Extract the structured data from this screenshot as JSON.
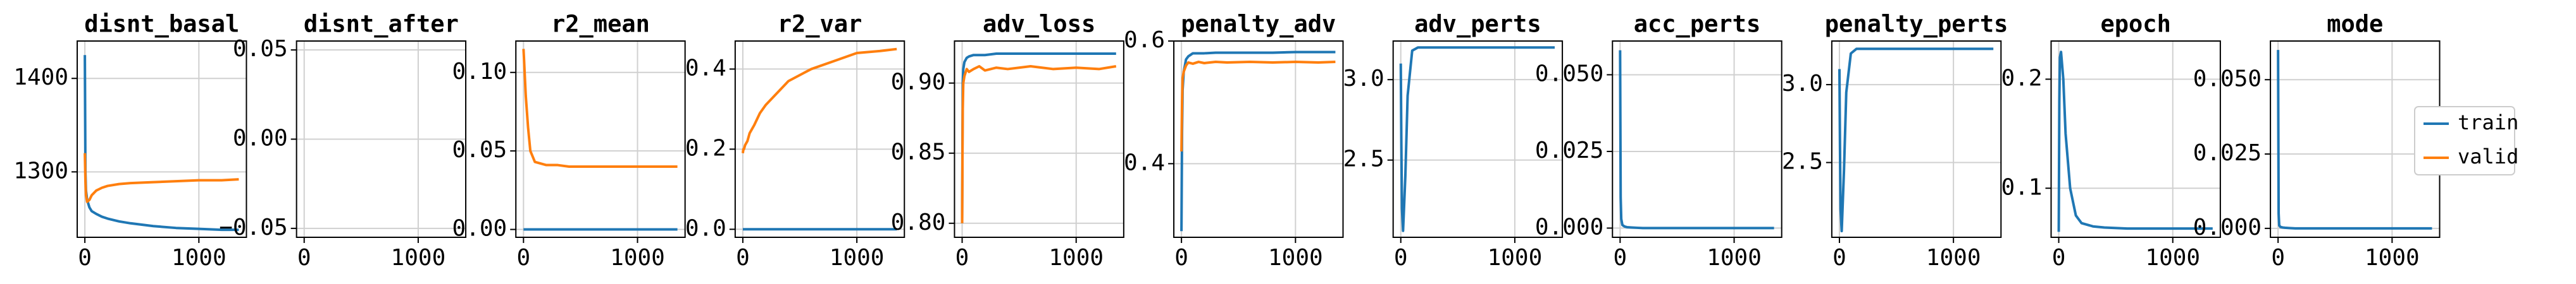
{
  "chart_data": [
    {
      "type": "line",
      "title": "disnt_basal",
      "grid": true,
      "x": [
        0,
        5,
        10,
        20,
        40,
        60,
        100,
        150,
        200,
        300,
        400,
        600,
        800,
        1000,
        1200,
        1350
      ],
      "xlim": [
        -67,
        1417
      ],
      "xticks": [
        0,
        1000
      ],
      "ylim": [
        1230,
        1440
      ],
      "yticks": [
        1300,
        1400
      ],
      "series": [
        {
          "name": "train",
          "color": "#1f77b4",
          "values": [
            1425,
            1300,
            1280,
            1270,
            1262,
            1258,
            1255,
            1252,
            1250,
            1247,
            1245,
            1242,
            1240,
            1239,
            1238,
            1238
          ]
        },
        {
          "name": "valid",
          "color": "#ff7f0e",
          "values": [
            1320,
            1290,
            1275,
            1268,
            1270,
            1275,
            1280,
            1283,
            1285,
            1287,
            1288,
            1289,
            1290,
            1291,
            1291,
            1292
          ]
        }
      ]
    },
    {
      "type": "line",
      "title": "disnt_after",
      "grid": true,
      "x": [],
      "xlim": [
        -67,
        1417
      ],
      "xticks": [
        0,
        1000
      ],
      "ylim": [
        -0.055,
        0.055
      ],
      "yticks": [
        {
          "value": -0.05,
          "label": "−0.05"
        },
        {
          "value": 0,
          "label": "0.00"
        },
        0.05
      ],
      "series": []
    },
    {
      "type": "line",
      "title": "r2_mean",
      "grid": true,
      "x": [
        0,
        5,
        10,
        20,
        40,
        60,
        100,
        150,
        200,
        300,
        400,
        600,
        800,
        1000,
        1200,
        1350
      ],
      "xlim": [
        -67,
        1417
      ],
      "xticks": [
        0,
        1000
      ],
      "ylim": [
        -0.005,
        0.12
      ],
      "yticks": [
        {
          "value": 0,
          "label": "0.00"
        },
        0.05,
        {
          "value": 0.1,
          "label": "0.10"
        }
      ],
      "series": [
        {
          "name": "train",
          "color": "#1f77b4",
          "values": [
            0,
            0,
            0,
            0,
            0,
            0,
            0,
            0,
            0,
            0,
            0,
            0,
            0,
            0,
            0,
            0
          ]
        },
        {
          "name": "valid",
          "color": "#ff7f0e",
          "values": [
            0.115,
            0.108,
            0.1,
            0.085,
            0.065,
            0.05,
            0.043,
            0.042,
            0.041,
            0.041,
            0.04,
            0.04,
            0.04,
            0.04,
            0.04,
            0.04
          ]
        }
      ]
    },
    {
      "type": "line",
      "title": "r2_var",
      "grid": true,
      "x": [
        0,
        5,
        10,
        20,
        40,
        60,
        100,
        150,
        200,
        300,
        400,
        600,
        800,
        1000,
        1200,
        1350
      ],
      "xlim": [
        -67,
        1417
      ],
      "xticks": [
        0,
        1000
      ],
      "ylim": [
        -0.02,
        0.47
      ],
      "yticks": [
        {
          "value": 0,
          "label": "0.0"
        },
        0.2,
        0.4
      ],
      "series": [
        {
          "name": "train",
          "color": "#1f77b4",
          "values": [
            0,
            0,
            0,
            0,
            0,
            0,
            0,
            0,
            0,
            0,
            0,
            0,
            0,
            0,
            0,
            0
          ]
        },
        {
          "name": "valid",
          "color": "#ff7f0e",
          "values": [
            0.19,
            0.2,
            0.2,
            0.21,
            0.22,
            0.24,
            0.26,
            0.29,
            0.31,
            0.34,
            0.37,
            0.4,
            0.42,
            0.44,
            0.445,
            0.45
          ]
        }
      ]
    },
    {
      "type": "line",
      "title": "adv_loss",
      "grid": true,
      "x": [
        0,
        5,
        10,
        20,
        40,
        60,
        100,
        150,
        200,
        300,
        400,
        600,
        800,
        1000,
        1200,
        1350
      ],
      "xlim": [
        -67,
        1417
      ],
      "xticks": [
        0,
        1000
      ],
      "ylim": [
        0.79,
        0.93
      ],
      "yticks": [
        {
          "value": 0.8,
          "label": "0.80"
        },
        0.85,
        {
          "value": 0.9,
          "label": "0.90"
        }
      ],
      "series": [
        {
          "name": "train",
          "color": "#1f77b4",
          "values": [
            0.8,
            0.9,
            0.91,
            0.915,
            0.918,
            0.919,
            0.92,
            0.92,
            0.92,
            0.921,
            0.921,
            0.921,
            0.921,
            0.921,
            0.921,
            0.921
          ]
        },
        {
          "name": "valid",
          "color": "#ff7f0e",
          "values": [
            0.8,
            0.88,
            0.9,
            0.905,
            0.91,
            0.908,
            0.91,
            0.912,
            0.909,
            0.911,
            0.91,
            0.912,
            0.91,
            0.911,
            0.91,
            0.912
          ]
        }
      ]
    },
    {
      "type": "line",
      "title": "penalty_adv",
      "grid": true,
      "x": [
        0,
        5,
        10,
        20,
        40,
        60,
        100,
        150,
        200,
        300,
        400,
        600,
        800,
        1000,
        1200,
        1350
      ],
      "xlim": [
        -67,
        1417
      ],
      "xticks": [
        0,
        1000
      ],
      "ylim": [
        0.28,
        0.6
      ],
      "yticks": [
        0.4,
        0.6
      ],
      "series": [
        {
          "name": "train",
          "color": "#1f77b4",
          "values": [
            0.29,
            0.45,
            0.52,
            0.55,
            0.57,
            0.575,
            0.58,
            0.58,
            0.58,
            0.581,
            0.581,
            0.581,
            0.581,
            0.582,
            0.582,
            0.582
          ]
        },
        {
          "name": "valid",
          "color": "#ff7f0e",
          "values": [
            0.42,
            0.5,
            0.54,
            0.55,
            0.56,
            0.565,
            0.563,
            0.566,
            0.564,
            0.566,
            0.565,
            0.566,
            0.565,
            0.566,
            0.565,
            0.566
          ]
        }
      ]
    },
    {
      "type": "line",
      "title": "adv_perts",
      "grid": true,
      "x": [
        0,
        5,
        10,
        20,
        40,
        60,
        100,
        150,
        200,
        300,
        400,
        600,
        800,
        1000,
        1200,
        1350
      ],
      "xlim": [
        -67,
        1417
      ],
      "xticks": [
        0,
        1000
      ],
      "ylim": [
        2.02,
        3.24
      ],
      "yticks": [
        2.5,
        {
          "value": 3,
          "label": "3.0"
        }
      ],
      "series": [
        {
          "name": "train",
          "color": "#1f77b4",
          "values": [
            3.1,
            2.6,
            2.2,
            2.06,
            2.4,
            2.9,
            3.18,
            3.2,
            3.2,
            3.2,
            3.2,
            3.2,
            3.2,
            3.2,
            3.2,
            3.2
          ]
        }
      ]
    },
    {
      "type": "line",
      "title": "acc_perts",
      "grid": true,
      "x": [
        0,
        5,
        10,
        20,
        40,
        60,
        100,
        150,
        200,
        300,
        400,
        600,
        800,
        1000,
        1200,
        1350
      ],
      "xlim": [
        -67,
        1417
      ],
      "xticks": [
        0,
        1000
      ],
      "ylim": [
        -0.003,
        0.061
      ],
      "yticks": [
        {
          "value": 0,
          "label": "0.000"
        },
        0.025,
        {
          "value": 0.05,
          "label": "0.050"
        }
      ],
      "series": [
        {
          "name": "train",
          "color": "#1f77b4",
          "values": [
            0.058,
            0.01,
            0.003,
            0.001,
            0.0005,
            0.0003,
            0.0002,
            0.0001,
            0,
            0,
            0,
            0,
            0,
            0,
            0,
            0
          ]
        }
      ]
    },
    {
      "type": "line",
      "title": "penalty_perts",
      "grid": true,
      "x": [
        0,
        5,
        10,
        20,
        40,
        60,
        100,
        150,
        200,
        300,
        400,
        600,
        800,
        1000,
        1200,
        1350
      ],
      "xlim": [
        -67,
        1417
      ],
      "xticks": [
        0,
        1000
      ],
      "ylim": [
        2.02,
        3.28
      ],
      "yticks": [
        2.5,
        {
          "value": 3,
          "label": "3.0"
        }
      ],
      "series": [
        {
          "name": "train",
          "color": "#1f77b4",
          "values": [
            3.1,
            2.6,
            2.2,
            2.06,
            2.45,
            2.95,
            3.2,
            3.23,
            3.23,
            3.23,
            3.23,
            3.23,
            3.23,
            3.23,
            3.23,
            3.23
          ]
        }
      ]
    },
    {
      "type": "line",
      "title": "epoch",
      "grid": true,
      "x": [
        0,
        5,
        10,
        20,
        40,
        60,
        100,
        150,
        200,
        300,
        400,
        600,
        800,
        1000,
        1200,
        1350
      ],
      "xlim": [
        -67,
        1417
      ],
      "xticks": [
        0,
        1000
      ],
      "ylim": [
        0.055,
        0.235
      ],
      "yticks": [
        0.1,
        0.2
      ],
      "series": [
        {
          "name": "train",
          "color": "#1f77b4",
          "values": [
            0.06,
            0.18,
            0.22,
            0.225,
            0.2,
            0.15,
            0.1,
            0.075,
            0.068,
            0.065,
            0.064,
            0.063,
            0.063,
            0.063,
            0.063,
            0.063
          ]
        }
      ]
    },
    {
      "type": "line",
      "title": "mode",
      "grid": true,
      "x": [
        0,
        5,
        10,
        20,
        40,
        60,
        100,
        150,
        200,
        300,
        400,
        600,
        800,
        1000,
        1200,
        1350
      ],
      "xlim": [
        -67,
        1417
      ],
      "xticks": [
        0,
        1000
      ],
      "ylim": [
        -0.003,
        0.063
      ],
      "yticks": [
        {
          "value": 0,
          "label": "0.000"
        },
        0.025,
        {
          "value": 0.05,
          "label": "0.050"
        }
      ],
      "series": [
        {
          "name": "train",
          "color": "#1f77b4",
          "values": [
            0.06,
            0.005,
            0.001,
            0.0005,
            0.0003,
            0.0002,
            0.0001,
            0,
            0,
            0,
            0,
            0,
            0,
            0,
            0,
            0
          ]
        }
      ]
    }
  ]
}
